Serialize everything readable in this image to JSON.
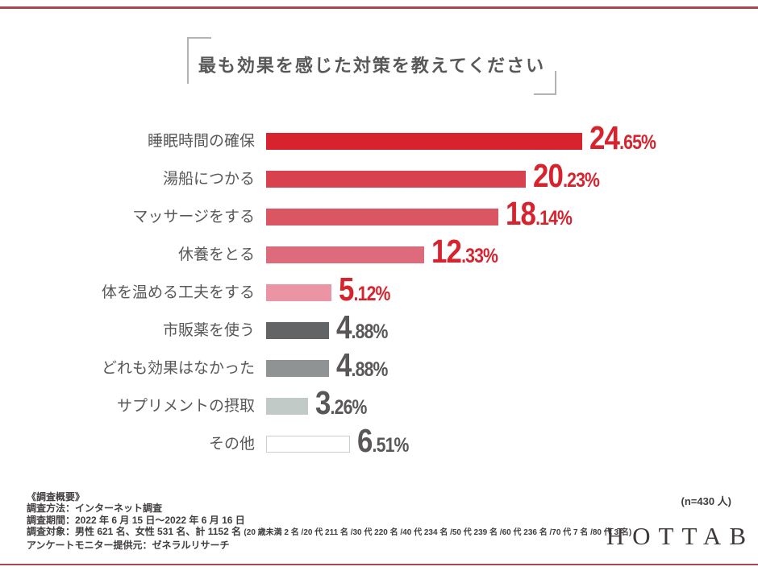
{
  "chart_data": {
    "type": "bar",
    "orientation": "horizontal",
    "title": "最も効果を感じた対策を教えてください",
    "categories": [
      "睡眠時間の確保",
      "湯船につかる",
      "マッサージをする",
      "休養をとる",
      "体を温める工夫をする",
      "市販薬を使う",
      "どれも効果はなかった",
      "サプリメントの摂取",
      "その他"
    ],
    "values": [
      24.65,
      20.23,
      18.14,
      12.33,
      5.12,
      4.88,
      4.88,
      3.26,
      6.51
    ],
    "unit": "%",
    "xlim": [
      0,
      25
    ],
    "grid": false,
    "legend": false,
    "bar_colors": [
      "#d7232e",
      "#d8424f",
      "#da5663",
      "#dd6b7b",
      "#eb94a4",
      "#626465",
      "#8f9394",
      "#c2cac8",
      "#ffffff"
    ],
    "bar_border_colors": [
      null,
      null,
      null,
      null,
      null,
      null,
      null,
      null,
      "#c9ced0"
    ],
    "value_label_colors": [
      "#d7232e",
      "#d7232e",
      "#d7232e",
      "#d7232e",
      "#d7232e",
      "#595757",
      "#595757",
      "#595757",
      "#595757"
    ],
    "value_labels": [
      "24.65%",
      "20.23%",
      "18.14%",
      "12.33%",
      "5.12%",
      "4.88%",
      "4.88%",
      "3.26%",
      "6.51%"
    ]
  },
  "footer": {
    "overview_heading": "《調査概要》",
    "method": "調査方法：インターネット調査",
    "period": "調査期間：2022 年 6 月 15 日～2022 年 6 月 16 日",
    "subjects": "調査対象：男性 621 名、女性 531 名、計 1152 名 ",
    "subjects_detail": "(20 歳未満 2 名 /20 代 211 名 /30 代 220 名 /40 代 234 名 /50 代 239 名 /60 代 236 名 /70 代 7 名 /80 代 3 名)",
    "monitor": "アンケートモニター提供元：ゼネラルリサーチ",
    "sample_size": "(n=430 人)",
    "logo_text": "HOTTAB"
  },
  "colors": {
    "accent_red": "#d7232e",
    "rule_red": "#a8484e",
    "text_gray": "#595757",
    "bracket_gray": "#b3b3b3"
  }
}
